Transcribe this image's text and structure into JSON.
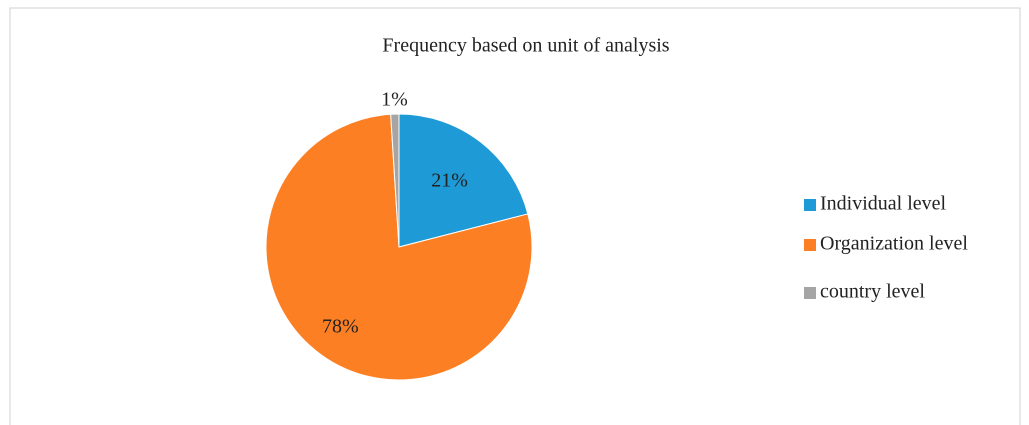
{
  "chart_data": {
    "type": "pie",
    "title": "Frequency based on unit of analysis",
    "categories": [
      "Individual level",
      "Organization level",
      "country level"
    ],
    "values": [
      21,
      78,
      1
    ],
    "value_labels": [
      "21%",
      "78%",
      "1%"
    ],
    "colors": [
      "#1e9ad6",
      "#fd7f23",
      "#a5a5a5"
    ],
    "legend": "right"
  }
}
